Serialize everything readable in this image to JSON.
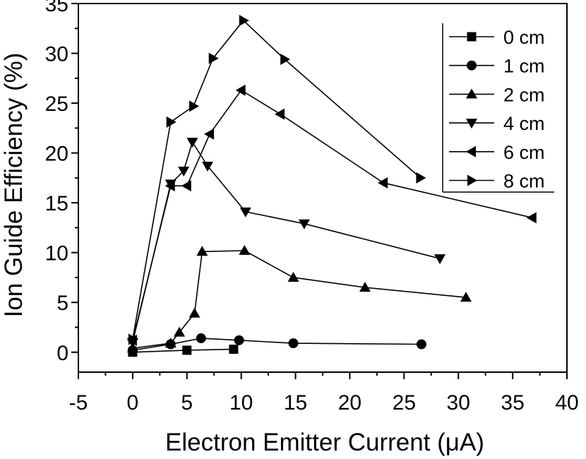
{
  "chart_data": {
    "type": "line",
    "xlabel": "Electron Emitter Current (μA)",
    "ylabel": "Ion Guide Efficiency (%)",
    "xlim": [
      -5,
      40
    ],
    "ylim": [
      -2,
      35
    ],
    "xticks": [
      -5,
      0,
      5,
      10,
      15,
      20,
      25,
      30,
      35,
      40
    ],
    "yticks": [
      0,
      5,
      10,
      15,
      20,
      25,
      30,
      35
    ],
    "grid": false,
    "legend_position": "top-right",
    "series": [
      {
        "name": "0 cm",
        "marker": "square",
        "x": [
          0,
          5,
          9.3
        ],
        "y": [
          0,
          0.2,
          0.3
        ]
      },
      {
        "name": "1 cm",
        "marker": "circle",
        "x": [
          0,
          3.5,
          6.3,
          9.8,
          14.8,
          26.6
        ],
        "y": [
          0.2,
          0.8,
          1.4,
          1.2,
          0.9,
          0.8
        ]
      },
      {
        "name": "2 cm",
        "marker": "triangle-up",
        "x": [
          0,
          3.5,
          4.3,
          5.7,
          6.4,
          10.3,
          14.8,
          21.4,
          30.7
        ],
        "y": [
          0.4,
          0.9,
          2.0,
          3.9,
          10.1,
          10.2,
          7.5,
          6.5,
          5.5
        ]
      },
      {
        "name": "4 cm",
        "marker": "triangle-down",
        "x": [
          0,
          3.5,
          4.7,
          5.5,
          6.9,
          10.4,
          15.8,
          28.3
        ],
        "y": [
          1.0,
          16.9,
          18.2,
          21.1,
          18.7,
          14.1,
          12.9,
          9.4
        ]
      },
      {
        "name": "6 cm",
        "marker": "triangle-left",
        "x": [
          0,
          3.5,
          5.0,
          7.1,
          10.0,
          13.6,
          23.1,
          36.8
        ],
        "y": [
          1.2,
          16.7,
          16.7,
          21.9,
          26.3,
          23.9,
          17.0,
          13.5
        ]
      },
      {
        "name": "8 cm",
        "marker": "triangle-right",
        "x": [
          0,
          3.5,
          5.6,
          7.4,
          10.2,
          14.0,
          26.5
        ],
        "y": [
          1.3,
          23.1,
          24.7,
          29.5,
          33.3,
          29.4,
          17.5
        ]
      }
    ]
  }
}
